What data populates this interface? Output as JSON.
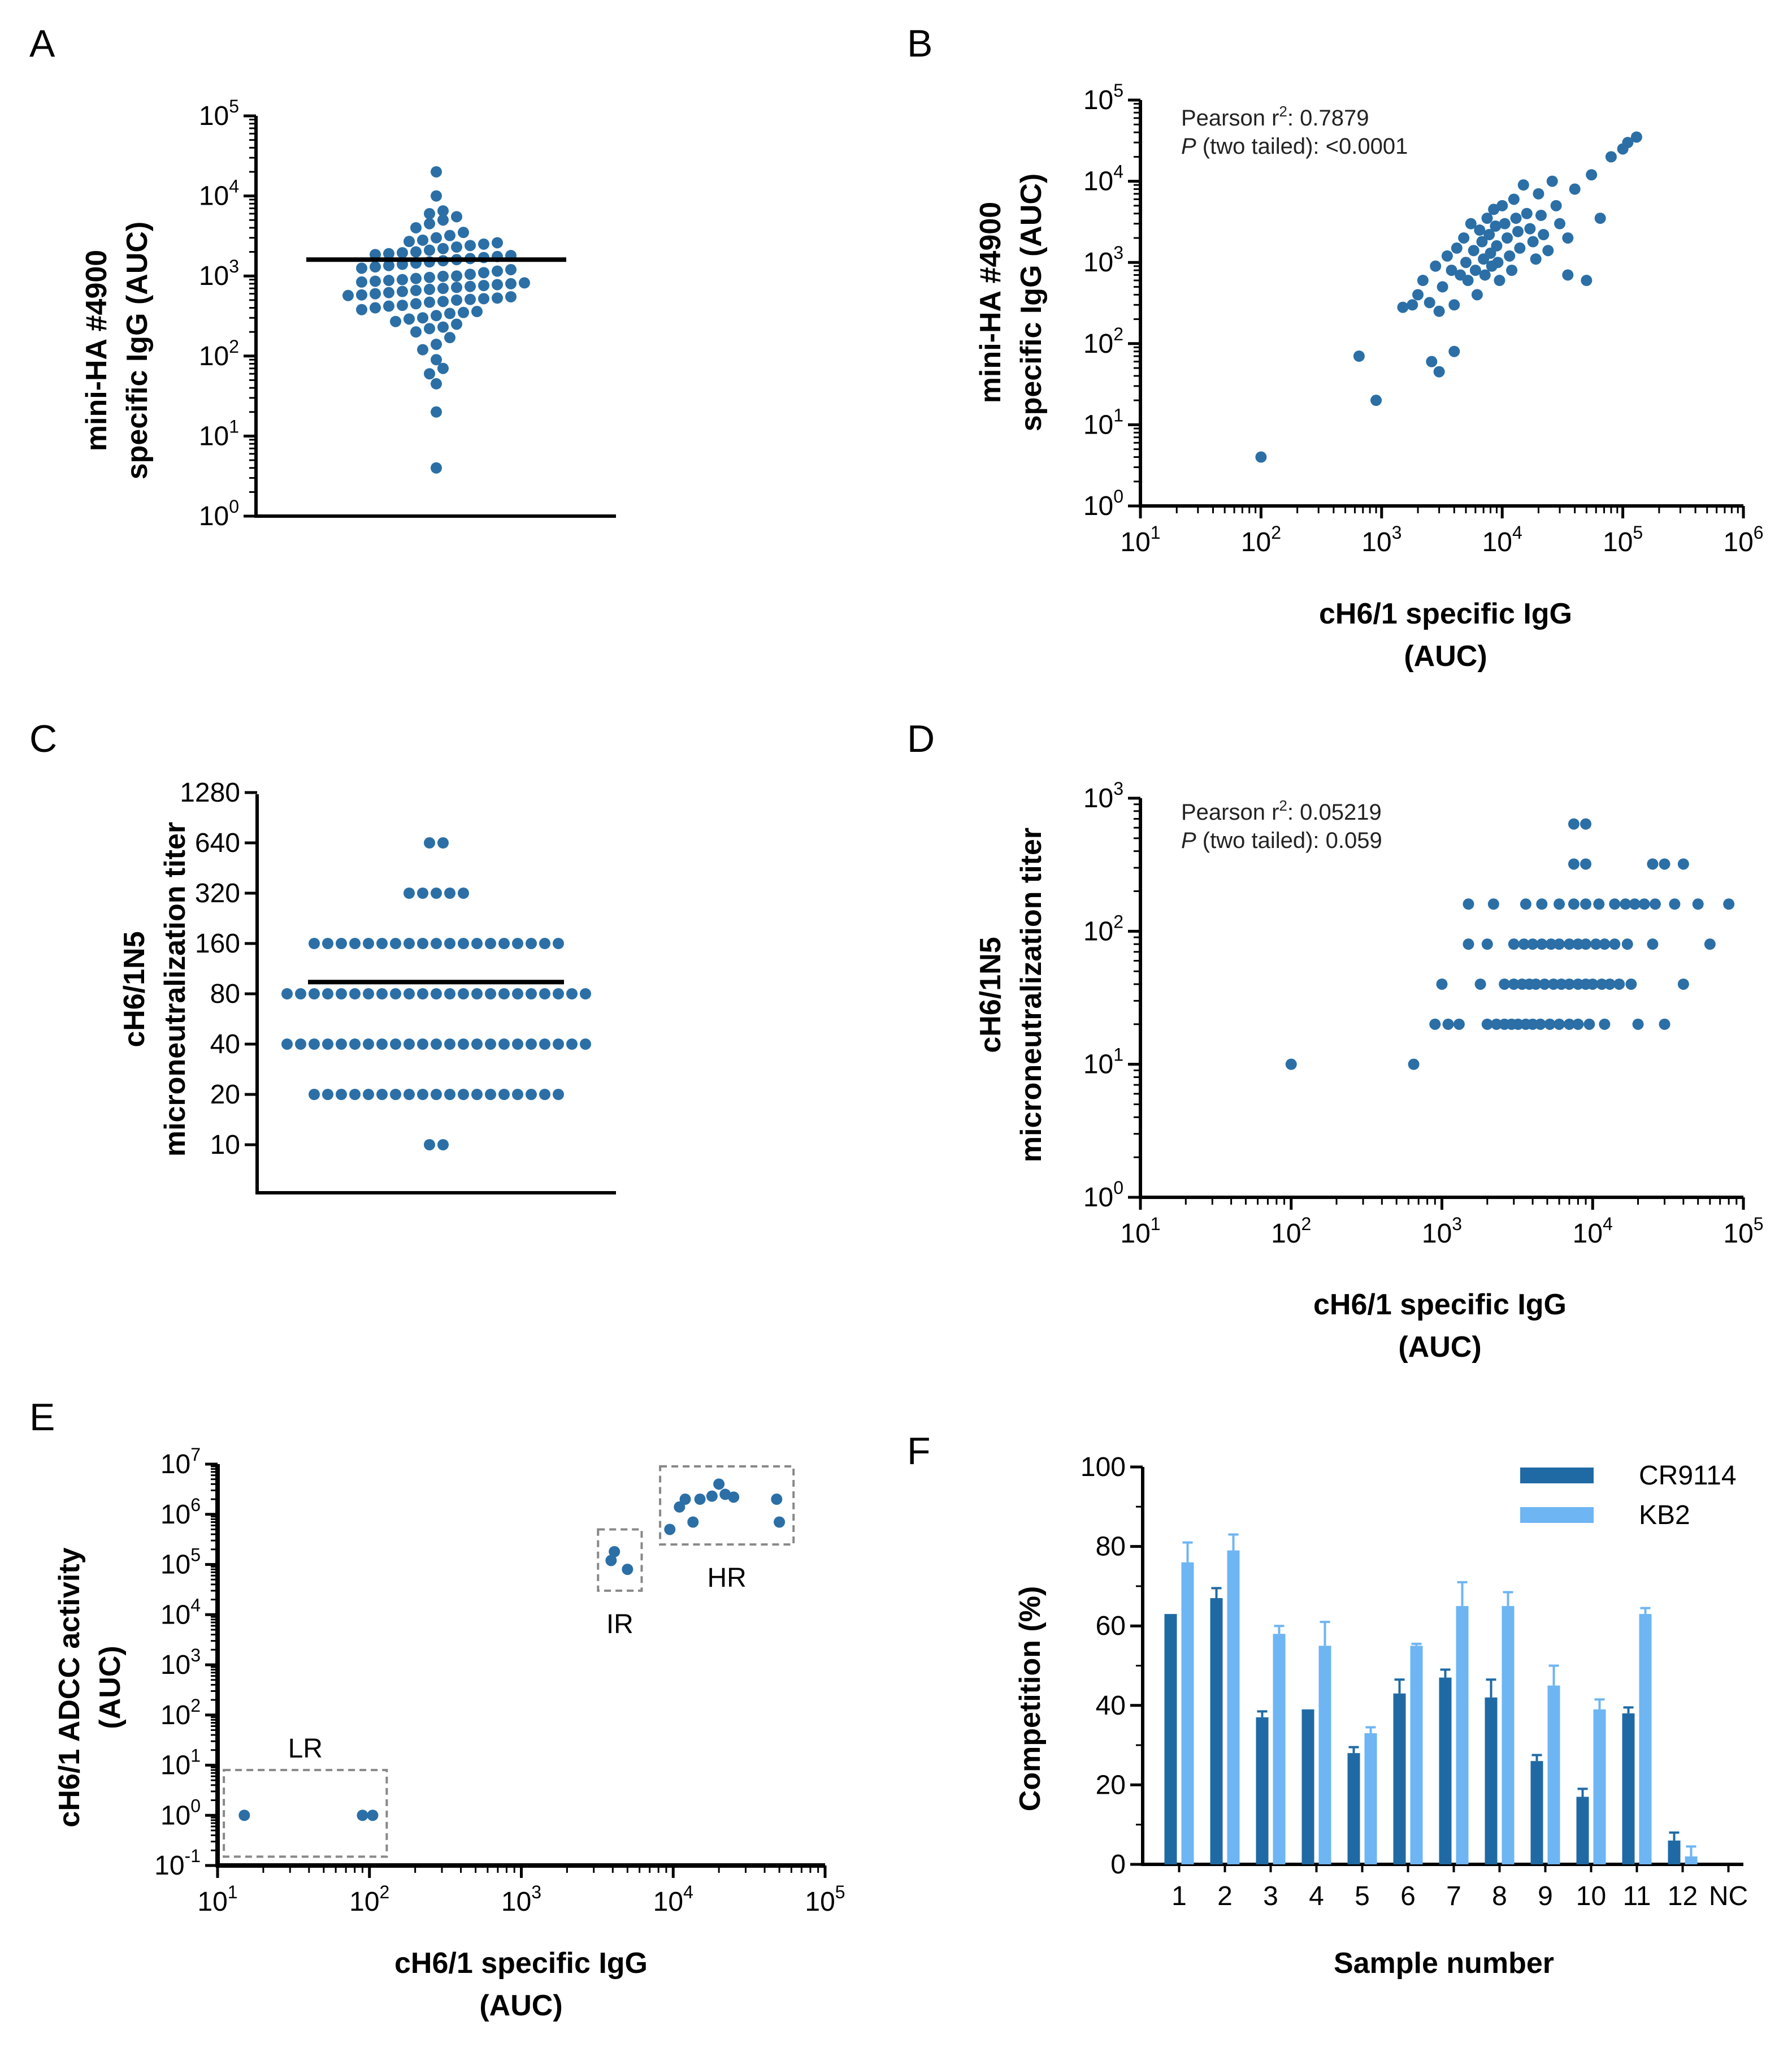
{
  "colors": {
    "point": "#2B6FA6",
    "cr9114": "#1F6AA5",
    "kb2": "#6EB5F3",
    "axis": "#000000",
    "mean_line": "#000000",
    "box": "#888888"
  },
  "chart_data": [
    {
      "id": "A",
      "panel_label": "A",
      "type": "scatter",
      "title": "",
      "ylabel_lines": [
        "mini-HA #4900",
        "specific IgG (AUC)"
      ],
      "xlabel_lines": [],
      "yscale": "log",
      "ylim": [
        1,
        100000
      ],
      "y_ticks": [
        {
          "base": "10",
          "exp": "0"
        },
        {
          "base": "10",
          "exp": "1"
        },
        {
          "base": "10",
          "exp": "2"
        },
        {
          "base": "10",
          "exp": "3"
        },
        {
          "base": "10",
          "exp": "4"
        },
        {
          "base": "10",
          "exp": "5"
        }
      ],
      "mean": 1600,
      "values": [
        4,
        20,
        45,
        60,
        70,
        90,
        120,
        140,
        170,
        200,
        220,
        230,
        250,
        270,
        290,
        300,
        320,
        340,
        350,
        360,
        380,
        400,
        420,
        430,
        450,
        470,
        480,
        500,
        510,
        520,
        530,
        550,
        570,
        580,
        600,
        620,
        640,
        660,
        680,
        700,
        720,
        740,
        760,
        780,
        800,
        820,
        840,
        860,
        880,
        900,
        930,
        960,
        990,
        1000,
        1050,
        1100,
        1150,
        1200,
        1250,
        1300,
        1350,
        1400,
        1450,
        1500,
        1550,
        1600,
        1650,
        1700,
        1750,
        1800,
        1850,
        1900,
        1950,
        2000,
        2100,
        2200,
        2300,
        2400,
        2500,
        2600,
        2700,
        2800,
        3000,
        3200,
        3500,
        4000,
        4500,
        5000,
        5500,
        6000,
        6500,
        10000,
        20000
      ]
    },
    {
      "id": "B",
      "panel_label": "B",
      "type": "scatter",
      "title": "",
      "ylabel_lines": [
        "mini-HA #4900",
        "specific IgG (AUC)"
      ],
      "xlabel_lines": [
        "cH6/1 specific IgG",
        "(AUC)"
      ],
      "xscale": "log",
      "yscale": "log",
      "xlim": [
        10,
        1000000
      ],
      "ylim": [
        1,
        100000
      ],
      "x_ticks": [
        {
          "base": "10",
          "exp": "1"
        },
        {
          "base": "10",
          "exp": "2"
        },
        {
          "base": "10",
          "exp": "3"
        },
        {
          "base": "10",
          "exp": "4"
        },
        {
          "base": "10",
          "exp": "5"
        },
        {
          "base": "10",
          "exp": "6"
        }
      ],
      "y_ticks": [
        {
          "base": "10",
          "exp": "0"
        },
        {
          "base": "10",
          "exp": "1"
        },
        {
          "base": "10",
          "exp": "2"
        },
        {
          "base": "10",
          "exp": "3"
        },
        {
          "base": "10",
          "exp": "4"
        },
        {
          "base": "10",
          "exp": "5"
        }
      ],
      "annotation": {
        "line1_prefix": "Pearson r",
        "line1_sup": "2",
        "line1_value": ": 0.7879",
        "line2_italic": "P",
        "line2_rest": " (two tailed): <0.0001"
      },
      "points": [
        [
          100,
          4
        ],
        [
          650,
          70
        ],
        [
          900,
          20
        ],
        [
          1500,
          280
        ],
        [
          1800,
          300
        ],
        [
          2000,
          400
        ],
        [
          2200,
          600
        ],
        [
          2500,
          320
        ],
        [
          2800,
          900
        ],
        [
          3000,
          250
        ],
        [
          3000,
          45
        ],
        [
          3200,
          500
        ],
        [
          3500,
          1200
        ],
        [
          3800,
          800
        ],
        [
          4000,
          300
        ],
        [
          4200,
          1500
        ],
        [
          4500,
          700
        ],
        [
          4800,
          2000
        ],
        [
          5000,
          1000
        ],
        [
          5200,
          600
        ],
        [
          5500,
          3000
        ],
        [
          5800,
          1400
        ],
        [
          6000,
          800
        ],
        [
          6200,
          400
        ],
        [
          6500,
          2500
        ],
        [
          6800,
          1800
        ],
        [
          7000,
          1100
        ],
        [
          7200,
          700
        ],
        [
          7500,
          3500
        ],
        [
          7800,
          2200
        ],
        [
          8000,
          1300
        ],
        [
          8200,
          900
        ],
        [
          8500,
          4500
        ],
        [
          8800,
          2800
        ],
        [
          9000,
          1600
        ],
        [
          9200,
          1000
        ],
        [
          9500,
          600
        ],
        [
          10000,
          5000
        ],
        [
          10500,
          3000
        ],
        [
          11000,
          2000
        ],
        [
          11500,
          1200
        ],
        [
          12000,
          800
        ],
        [
          12500,
          6000
        ],
        [
          13000,
          3500
        ],
        [
          13500,
          2400
        ],
        [
          14000,
          1500
        ],
        [
          15000,
          9000
        ],
        [
          16000,
          4000
        ],
        [
          17000,
          2600
        ],
        [
          18000,
          1800
        ],
        [
          19000,
          1100
        ],
        [
          20000,
          7000
        ],
        [
          21000,
          3800
        ],
        [
          22000,
          2200
        ],
        [
          24000,
          1400
        ],
        [
          26000,
          10000
        ],
        [
          28000,
          5000
        ],
        [
          30000,
          3000
        ],
        [
          35000,
          2000
        ],
        [
          40000,
          8000
        ],
        [
          50000,
          600
        ],
        [
          55000,
          12000
        ],
        [
          65000,
          3500
        ],
        [
          80000,
          20000
        ],
        [
          100000,
          25000
        ],
        [
          110000,
          30000
        ],
        [
          130000,
          35000
        ],
        [
          35000,
          700
        ],
        [
          2600,
          60
        ],
        [
          4000,
          80
        ]
      ]
    },
    {
      "id": "C",
      "panel_label": "C",
      "type": "scatter",
      "title": "",
      "ylabel_lines": [
        "cH6/1N5",
        "microneutralization titer"
      ],
      "xlabel_lines": [],
      "yscale": "log2",
      "ylim": [
        5,
        1280
      ],
      "y_tick_labels": [
        "10",
        "20",
        "40",
        "80",
        "160",
        "320",
        "640",
        "1280"
      ],
      "y_tick_values": [
        10,
        20,
        40,
        80,
        160,
        320,
        640,
        1280
      ],
      "mean": 94,
      "groups": [
        {
          "value": 10,
          "count": 2
        },
        {
          "value": 20,
          "count": 19
        },
        {
          "value": 40,
          "count": 23
        },
        {
          "value": 80,
          "count": 23
        },
        {
          "value": 160,
          "count": 19
        },
        {
          "value": 320,
          "count": 5
        },
        {
          "value": 640,
          "count": 2
        }
      ]
    },
    {
      "id": "D",
      "panel_label": "D",
      "type": "scatter",
      "title": "",
      "ylabel_lines": [
        "cH6/1N5",
        "microneutralization titer"
      ],
      "xlabel_lines": [
        "cH6/1 specific IgG",
        "(AUC)"
      ],
      "xscale": "log",
      "yscale": "log",
      "xlim": [
        10,
        100000
      ],
      "ylim": [
        1,
        1000
      ],
      "x_ticks": [
        {
          "base": "10",
          "exp": "1"
        },
        {
          "base": "10",
          "exp": "2"
        },
        {
          "base": "10",
          "exp": "3"
        },
        {
          "base": "10",
          "exp": "4"
        },
        {
          "base": "10",
          "exp": "5"
        }
      ],
      "y_ticks": [
        {
          "base": "10",
          "exp": "0"
        },
        {
          "base": "10",
          "exp": "1"
        },
        {
          "base": "10",
          "exp": "2"
        },
        {
          "base": "10",
          "exp": "3"
        }
      ],
      "annotation": {
        "line1_prefix": "Pearson r",
        "line1_sup": "2",
        "line1_value": ": 0.05219",
        "line2_italic": "P",
        "line2_rest": " (two tailed): 0.059"
      },
      "points": [
        [
          100,
          10
        ],
        [
          650,
          10
        ],
        [
          900,
          20
        ],
        [
          1100,
          20
        ],
        [
          1300,
          20
        ],
        [
          2000,
          20
        ],
        [
          2300,
          20
        ],
        [
          2600,
          20
        ],
        [
          2900,
          20
        ],
        [
          3200,
          20
        ],
        [
          3600,
          20
        ],
        [
          4000,
          20
        ],
        [
          4500,
          20
        ],
        [
          5200,
          20
        ],
        [
          6000,
          20
        ],
        [
          7000,
          20
        ],
        [
          8000,
          20
        ],
        [
          9500,
          20
        ],
        [
          12000,
          20
        ],
        [
          20000,
          20
        ],
        [
          30000,
          20
        ],
        [
          1000,
          40
        ],
        [
          1800,
          40
        ],
        [
          2600,
          40
        ],
        [
          3000,
          40
        ],
        [
          3400,
          40
        ],
        [
          3800,
          40
        ],
        [
          4200,
          40
        ],
        [
          4800,
          40
        ],
        [
          5500,
          40
        ],
        [
          6200,
          40
        ],
        [
          7000,
          40
        ],
        [
          8000,
          40
        ],
        [
          9000,
          40
        ],
        [
          10000,
          40
        ],
        [
          11500,
          40
        ],
        [
          13000,
          40
        ],
        [
          15000,
          40
        ],
        [
          18000,
          40
        ],
        [
          40000,
          40
        ],
        [
          1500,
          80
        ],
        [
          2000,
          80
        ],
        [
          3000,
          80
        ],
        [
          3500,
          80
        ],
        [
          4000,
          80
        ],
        [
          4600,
          80
        ],
        [
          5300,
          80
        ],
        [
          6000,
          80
        ],
        [
          7000,
          80
        ],
        [
          8000,
          80
        ],
        [
          9000,
          80
        ],
        [
          10500,
          80
        ],
        [
          12000,
          80
        ],
        [
          14000,
          80
        ],
        [
          17000,
          80
        ],
        [
          25000,
          80
        ],
        [
          60000,
          80
        ],
        [
          1500,
          160
        ],
        [
          2200,
          160
        ],
        [
          3600,
          160
        ],
        [
          4600,
          160
        ],
        [
          6000,
          160
        ],
        [
          7500,
          160
        ],
        [
          9000,
          160
        ],
        [
          11000,
          160
        ],
        [
          14000,
          160
        ],
        [
          16500,
          160
        ],
        [
          19000,
          160
        ],
        [
          22000,
          160
        ],
        [
          26000,
          160
        ],
        [
          35000,
          160
        ],
        [
          50000,
          160
        ],
        [
          80000,
          160
        ],
        [
          7500,
          320
        ],
        [
          9000,
          320
        ],
        [
          25000,
          320
        ],
        [
          30000,
          320
        ],
        [
          40000,
          320
        ],
        [
          7500,
          640
        ],
        [
          9000,
          640
        ]
      ]
    },
    {
      "id": "E",
      "panel_label": "E",
      "type": "scatter",
      "title": "",
      "ylabel_lines": [
        "cH6/1 ADCC activity",
        "(AUC)"
      ],
      "xlabel_lines": [
        "cH6/1 specific IgG",
        "(AUC)"
      ],
      "xscale": "log",
      "yscale": "log",
      "xlim": [
        10,
        100000
      ],
      "ylim": [
        0.1,
        10000000
      ],
      "x_ticks": [
        {
          "base": "10",
          "exp": "1"
        },
        {
          "base": "10",
          "exp": "2"
        },
        {
          "base": "10",
          "exp": "3"
        },
        {
          "base": "10",
          "exp": "4"
        },
        {
          "base": "10",
          "exp": "5"
        }
      ],
      "y_ticks": [
        {
          "base": "10",
          "exp": "-1"
        },
        {
          "base": "10",
          "exp": "0"
        },
        {
          "base": "10",
          "exp": "1"
        },
        {
          "base": "10",
          "exp": "2"
        },
        {
          "base": "10",
          "exp": "3"
        },
        {
          "base": "10",
          "exp": "4"
        },
        {
          "base": "10",
          "exp": "5"
        },
        {
          "base": "10",
          "exp": "6"
        },
        {
          "base": "10",
          "exp": "7"
        }
      ],
      "points": [
        [
          15,
          1
        ],
        [
          90,
          1
        ],
        [
          105,
          1
        ],
        [
          3900,
          120000
        ],
        [
          4100,
          180000
        ],
        [
          5000,
          80000
        ],
        [
          9500,
          500000
        ],
        [
          11000,
          1400000
        ],
        [
          12000,
          2000000
        ],
        [
          13500,
          700000
        ],
        [
          15000,
          2000000
        ],
        [
          18000,
          2300000
        ],
        [
          20000,
          4000000
        ],
        [
          22000,
          2500000
        ],
        [
          25000,
          2200000
        ],
        [
          48000,
          2000000
        ],
        [
          50000,
          700000
        ]
      ],
      "groups": [
        {
          "label": "LR",
          "xlim": [
            11,
            130
          ],
          "ylim": [
            0.15,
            8
          ]
        },
        {
          "label": "IR",
          "xlim": [
            3200,
            6200
          ],
          "ylim": [
            30000,
            500000
          ]
        },
        {
          "label": "HR",
          "xlim": [
            8200,
            62000
          ],
          "ylim": [
            250000,
            9000000
          ]
        }
      ]
    },
    {
      "id": "F",
      "panel_label": "F",
      "type": "bar",
      "title": "",
      "ylabel": "Competition (%)",
      "xlabel": "Sample number",
      "ylim": [
        0,
        100
      ],
      "y_tick_labels": [
        "0",
        "20",
        "40",
        "60",
        "80",
        "100"
      ],
      "categories": [
        "1",
        "2",
        "3",
        "4",
        "5",
        "6",
        "7",
        "8",
        "9",
        "10",
        "11",
        "12",
        "NC"
      ],
      "series": [
        {
          "name": "CR9114",
          "values": [
            63,
            67,
            37,
            39,
            28,
            43,
            47,
            42,
            26,
            17,
            38,
            6,
            0
          ],
          "errors": [
            0,
            2.5,
            1.5,
            0,
            1.5,
            3.5,
            2,
            4.5,
            1.5,
            2,
            1.5,
            2,
            0
          ]
        },
        {
          "name": "KB2",
          "values": [
            76,
            79,
            58,
            55,
            33,
            55,
            65,
            65,
            45,
            39,
            63,
            2,
            0
          ],
          "errors": [
            5,
            4,
            2,
            6,
            1.5,
            0.5,
            6,
            3.5,
            5,
            2.5,
            1.5,
            2.5,
            0
          ]
        }
      ]
    }
  ]
}
